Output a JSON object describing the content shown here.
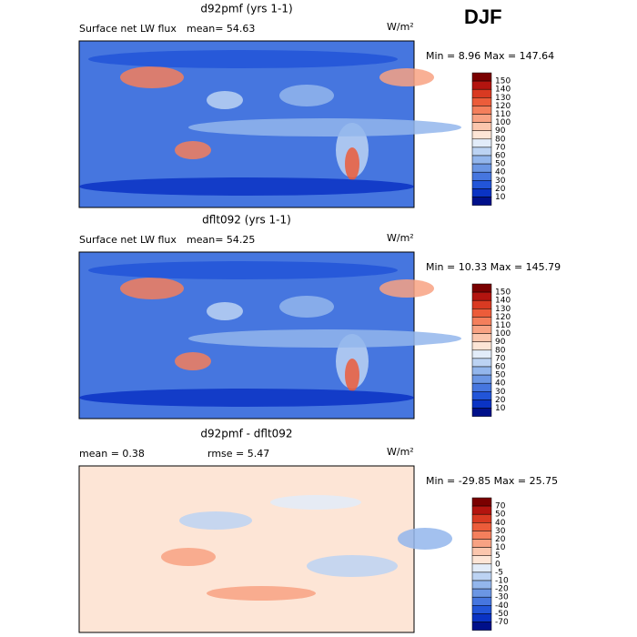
{
  "header": {
    "season": "DJF"
  },
  "panels": [
    {
      "title": "d92pmf (yrs 1-1)",
      "left_text": "Surface net LW flux",
      "mid_text": "mean=  54.63",
      "units": "W/m²",
      "minmax": "Min =   8.96 Max = 147.64",
      "colorbar": {
        "labels": [
          "150",
          "140",
          "130",
          "120",
          "110",
          "100",
          "90",
          "80",
          "70",
          "60",
          "50",
          "40",
          "30",
          "20",
          "10"
        ],
        "colors": [
          "#7a0000",
          "#b3140f",
          "#d93a22",
          "#ec5c3a",
          "#f47f5c",
          "#f8a283",
          "#fbc6ad",
          "#fde5d6",
          "#e2ecf9",
          "#bcd3f3",
          "#93b6ec",
          "#6b96e4",
          "#4676df",
          "#2255d8",
          "#0a33c4",
          "#00108a"
        ]
      }
    },
    {
      "title": "dflt092 (yrs 1-1)",
      "left_text": "Surface net LW flux",
      "mid_text": "mean=  54.25",
      "units": "W/m²",
      "minmax": "Min =  10.33 Max = 145.79",
      "colorbar": {
        "labels": [
          "150",
          "140",
          "130",
          "120",
          "110",
          "100",
          "90",
          "80",
          "70",
          "60",
          "50",
          "40",
          "30",
          "20",
          "10"
        ],
        "colors": [
          "#7a0000",
          "#b3140f",
          "#d93a22",
          "#ec5c3a",
          "#f47f5c",
          "#f8a283",
          "#fbc6ad",
          "#fde5d6",
          "#e2ecf9",
          "#bcd3f3",
          "#93b6ec",
          "#6b96e4",
          "#4676df",
          "#2255d8",
          "#0a33c4",
          "#00108a"
        ]
      }
    },
    {
      "title": "d92pmf - dflt092",
      "left_text": "mean =   0.38",
      "mid_text": "rmse =   5.47",
      "units": "W/m²",
      "minmax": "Min = -29.85 Max =  25.75",
      "colorbar": {
        "labels": [
          "70",
          "50",
          "40",
          "30",
          "20",
          "10",
          "5",
          "0",
          "-5",
          "-10",
          "-20",
          "-30",
          "-40",
          "-50",
          "-70"
        ],
        "colors": [
          "#7a0000",
          "#b3140f",
          "#d93a22",
          "#ec5c3a",
          "#f47f5c",
          "#f8a283",
          "#fbc6ad",
          "#fde5d6",
          "#e2ecf9",
          "#bcd3f3",
          "#93b6ec",
          "#6b96e4",
          "#4676df",
          "#2255d8",
          "#0a33c4",
          "#00108a"
        ]
      }
    }
  ]
}
